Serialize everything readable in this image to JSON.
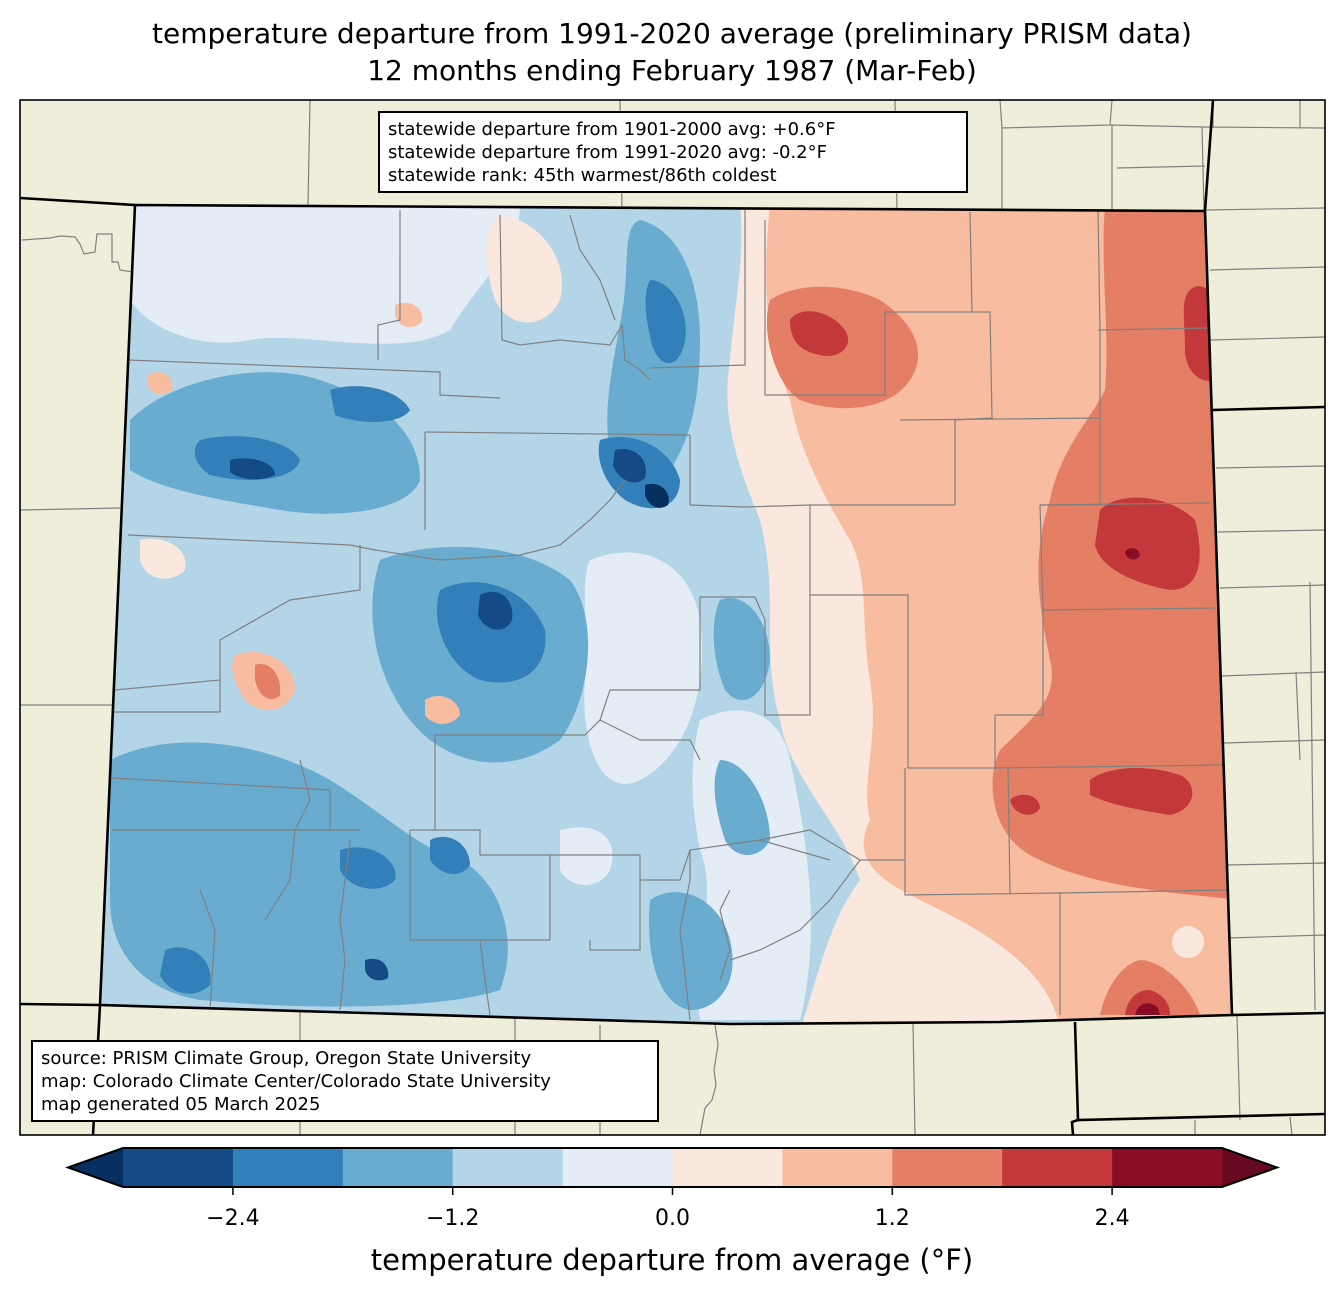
{
  "title": {
    "line1": "temperature departure from 1991-2020 average (preliminary PRISM data)",
    "line2": "12 months ending February 1987 (Mar-Feb)"
  },
  "stats_box": {
    "line1": "statewide departure from 1901-2000 avg: +0.6°F",
    "line2": "statewide departure from 1991-2020 avg: -0.2°F",
    "line3": "statewide rank: 45th warmest/86th coldest"
  },
  "source_box": {
    "line1": "source: PRISM Climate Group, Oregon State University",
    "line2": "map: Colorado Climate Center/Colorado State University",
    "line3": "map generated 05 March 2025"
  },
  "colors": {
    "background_land": "#efeedb",
    "county_line": "#808080",
    "state_line": "#000000"
  },
  "colorbar": {
    "label": "temperature departure from average (°F)",
    "levels": [
      -3.0,
      -2.4,
      -1.8,
      -1.2,
      -0.6,
      0.0,
      0.6,
      1.2,
      1.8,
      2.4,
      3.0
    ],
    "colors": [
      "#144a85",
      "#337fb9",
      "#6aacd0",
      "#b3d5e7",
      "#e4edf5",
      "#fae8df",
      "#f8bca1",
      "#e47f66",
      "#c2383b",
      "#8a0d26"
    ],
    "under_color": "#072f5f",
    "over_color": "#670a1f",
    "ticks": [
      {
        "value": -2.4,
        "label": "−2.4"
      },
      {
        "value": -1.2,
        "label": "−1.2"
      },
      {
        "value": 0.0,
        "label": "0.0"
      },
      {
        "value": 1.2,
        "label": "1.2"
      },
      {
        "value": 2.4,
        "label": "2.4"
      }
    ]
  }
}
